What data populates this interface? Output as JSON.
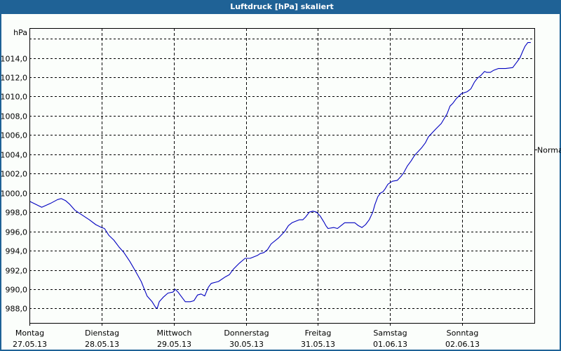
{
  "window": {
    "title": "Luftdruck [hPa] skaliert",
    "title_bar_color": "#1f6296",
    "background_color": "#fbfefb"
  },
  "chart_data": {
    "type": "line",
    "title": "Luftdruck [hPa] skaliert",
    "xlabel": "",
    "ylabel": "hPa",
    "ylim": [
      986.5,
      1017.1
    ],
    "xlim": [
      0,
      7
    ],
    "grid": true,
    "grid_style": "dashed",
    "line_color": "#0000c0",
    "y_ticks": [
      988,
      990,
      992,
      994,
      996,
      998,
      1000,
      1002,
      1004,
      1006,
      1008,
      1010,
      1012,
      1014,
      1016
    ],
    "y_tick_labels": [
      "988,0",
      "990,0",
      "992,0",
      "994,0",
      "996,0",
      "998,0",
      "1000,0",
      "1002,0",
      "1004,0",
      "1006,0",
      "1008,0",
      "1010,0",
      "1012,0",
      "1014,0",
      ""
    ],
    "x_ticks": [
      0,
      1,
      2,
      3,
      4,
      5,
      6
    ],
    "x_tick_labels": [
      {
        "day": "Montag",
        "date": "27.05.13"
      },
      {
        "day": "Dienstag",
        "date": "28.05.13"
      },
      {
        "day": "Mittwoch",
        "date": "29.05.13"
      },
      {
        "day": "Donnerstag",
        "date": "30.05.13"
      },
      {
        "day": "Freitag",
        "date": "31.05.13"
      },
      {
        "day": "Samstag",
        "date": "01.06.13"
      },
      {
        "day": "Sonntag",
        "date": "02.06.13"
      }
    ],
    "annotations": [
      {
        "label": "Normal",
        "y": 1004.5,
        "position": "right-axis"
      }
    ],
    "series": [
      {
        "name": "Luftdruck",
        "x": [
          0.01,
          0.17,
          0.29,
          0.39,
          0.44,
          0.5,
          0.56,
          0.63,
          0.73,
          0.83,
          0.92,
          1.0,
          1.04,
          1.1,
          1.17,
          1.24,
          1.31,
          1.39,
          1.46,
          1.55,
          1.63,
          1.7,
          1.75,
          1.77,
          1.8,
          1.86,
          1.92,
          1.99,
          2.02,
          2.06,
          2.11,
          2.16,
          2.23,
          2.28,
          2.33,
          2.38,
          2.43,
          2.48,
          2.52,
          2.62,
          2.72,
          2.77,
          2.83,
          2.91,
          2.99,
          3.06,
          3.16,
          3.2,
          3.25,
          3.3,
          3.35,
          3.45,
          3.54,
          3.59,
          3.64,
          3.74,
          3.79,
          3.83,
          3.88,
          3.93,
          3.98,
          4.03,
          4.08,
          4.11,
          4.14,
          4.22,
          4.27,
          4.32,
          4.37,
          4.47,
          4.51,
          4.56,
          4.61,
          4.66,
          4.71,
          4.76,
          4.79,
          4.83,
          4.87,
          4.9,
          4.93,
          4.97,
          5.03,
          5.1,
          5.15,
          5.19,
          5.24,
          5.29,
          5.34,
          5.39,
          5.44,
          5.49,
          5.53,
          5.58,
          5.63,
          5.71,
          5.75,
          5.79,
          5.83,
          5.87,
          5.92,
          5.99,
          6.07,
          6.12,
          6.17,
          6.21,
          6.26,
          6.31,
          6.34,
          6.39,
          6.43,
          6.5,
          6.6,
          6.7,
          6.75,
          6.8,
          6.84,
          6.87,
          6.91,
          6.95
        ],
        "values": [
          999.1,
          998.5,
          998.9,
          999.3,
          999.4,
          999.2,
          998.8,
          998.2,
          997.7,
          997.2,
          996.7,
          996.4,
          996.3,
          995.6,
          995.1,
          994.4,
          993.8,
          992.9,
          992.0,
          990.8,
          989.3,
          988.7,
          988.1,
          988.0,
          988.7,
          989.2,
          989.6,
          989.7,
          990.0,
          989.7,
          989.2,
          988.7,
          988.7,
          988.8,
          989.4,
          989.5,
          989.3,
          990.2,
          990.6,
          990.8,
          991.3,
          991.5,
          992.1,
          992.7,
          993.2,
          993.2,
          993.5,
          993.7,
          993.8,
          994.1,
          994.7,
          995.3,
          996.0,
          996.6,
          996.9,
          997.2,
          997.2,
          997.5,
          998.0,
          998.1,
          998.0,
          997.6,
          997.0,
          996.6,
          996.3,
          996.4,
          996.3,
          996.6,
          996.9,
          996.9,
          996.9,
          996.6,
          996.4,
          996.7,
          997.2,
          998.0,
          998.8,
          999.6,
          1000.0,
          1000.1,
          1000.4,
          1000.9,
          1001.2,
          1001.3,
          1001.7,
          1002.1,
          1002.8,
          1003.3,
          1003.9,
          1004.3,
          1004.7,
          1005.2,
          1005.8,
          1006.2,
          1006.6,
          1007.2,
          1007.7,
          1008.2,
          1009.0,
          1009.3,
          1009.8,
          1010.3,
          1010.5,
          1010.8,
          1011.5,
          1011.9,
          1012.2,
          1012.6,
          1012.5,
          1012.5,
          1012.7,
          1012.9,
          1012.9,
          1013.0,
          1013.5,
          1014.0,
          1014.7,
          1015.2,
          1015.6,
          1015.6
        ]
      }
    ]
  }
}
